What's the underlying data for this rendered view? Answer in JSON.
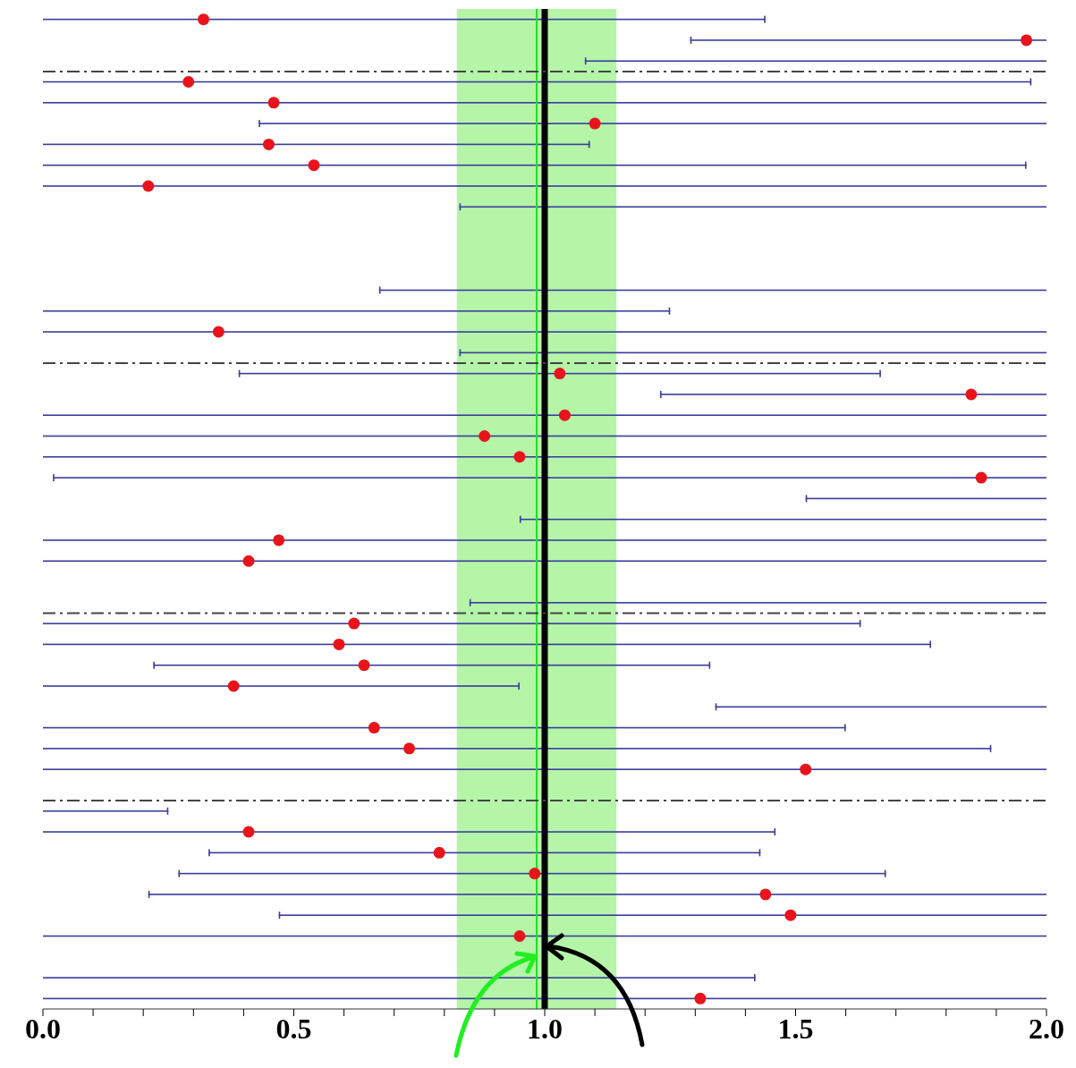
{
  "chart_data": {
    "type": "bar",
    "orientation": "horizontal",
    "categories": [
      null,
      null,
      null,
      null,
      null,
      null,
      null,
      null,
      null,
      null,
      null,
      null,
      null,
      null,
      null,
      null,
      null,
      null,
      null,
      null,
      null,
      null,
      null,
      null,
      null,
      null,
      null,
      null,
      null,
      null,
      null,
      null,
      null,
      null,
      null,
      null,
      null,
      null,
      null,
      null,
      null,
      null,
      null,
      null,
      null,
      null,
      null,
      null
    ],
    "series": [
      {
        "color": "#3c3c9c",
        "base": [
          0,
          1.29,
          1.08,
          0,
          0,
          0.43,
          0,
          0,
          0,
          0.83,
          null,
          null,
          null,
          0.67,
          0,
          0,
          0.83,
          0.39,
          1.23,
          0,
          0,
          0,
          0.02,
          1.52,
          0.95,
          0,
          0,
          null,
          0.85,
          0,
          0,
          0.22,
          0,
          1.34,
          0,
          0,
          0,
          null,
          0,
          0,
          0.33,
          0.27,
          0.21,
          0.47,
          0,
          null,
          0,
          0
        ],
        "values": [
          1.44,
          0.71,
          0.92,
          1.97,
          2,
          1.57,
          1.09,
          1.96,
          2,
          1.17,
          null,
          null,
          null,
          1.33,
          1.25,
          2,
          1.17,
          1.28,
          0.77,
          2,
          2,
          2,
          1.98,
          0.48,
          1.05,
          2,
          2,
          null,
          1.15,
          1.63,
          1.77,
          1.11,
          0.95,
          0.66,
          1.6,
          1.89,
          2,
          null,
          0.25,
          1.46,
          1.1,
          1.41,
          1.79,
          1.53,
          2,
          null,
          1.42,
          2
        ]
      },
      {
        "type": "scatter",
        "color": "#e8141c",
        "values": [
          0.32,
          1.96,
          null,
          0.29,
          0.46,
          1.1,
          0.45,
          0.54,
          0.21,
          null,
          null,
          null,
          null,
          null,
          null,
          0.35,
          null,
          1.03,
          1.85,
          1.04,
          0.88,
          0.95,
          1.87,
          null,
          null,
          0.47,
          0.41,
          null,
          null,
          0.62,
          0.59,
          0.64,
          0.38,
          null,
          0.66,
          0.73,
          1.52,
          null,
          null,
          0.41,
          0.79,
          0.98,
          1.44,
          1.49,
          0.95,
          null,
          null,
          1.31
        ]
      }
    ],
    "xlim": [
      0,
      2
    ],
    "xticks": [
      {
        "value": 0,
        "label": "0.0"
      },
      {
        "value": 0.1,
        "label": null
      },
      {
        "value": 0.2,
        "label": null
      },
      {
        "value": 0.3,
        "label": null
      },
      {
        "value": 0.4,
        "label": null
      },
      {
        "value": 0.5,
        "label": "0.5"
      },
      {
        "value": 0.6,
        "label": null
      },
      {
        "value": 0.7,
        "label": null
      },
      {
        "value": 0.8,
        "label": null
      },
      {
        "value": 0.9,
        "label": null
      },
      {
        "value": 1,
        "label": "1.0"
      },
      {
        "value": 1.1,
        "label": null
      },
      {
        "value": 1.2,
        "label": null
      },
      {
        "value": 1.3,
        "label": null
      },
      {
        "value": 1.4,
        "label": null
      },
      {
        "value": 1.5,
        "label": "1.5"
      },
      {
        "value": 1.6,
        "label": null
      },
      {
        "value": 1.7,
        "label": null
      },
      {
        "value": 1.8,
        "label": null
      },
      {
        "value": 1.9,
        "label": null
      },
      {
        "value": 2,
        "label": "2.0"
      }
    ],
    "marker": "circle",
    "tick_labels": "x",
    "bands": [
      {
        "axis": "x",
        "from": 0.825,
        "to": 1.143,
        "color": "#b4f5a8"
      }
    ],
    "ref_lines": [
      {
        "axis": "x",
        "value": 0.984,
        "color": "#22dd22",
        "line_style": "solid"
      },
      {
        "axis": "x",
        "value": 1,
        "color": "#000000",
        "line_style": "solid"
      }
    ]
  }
}
